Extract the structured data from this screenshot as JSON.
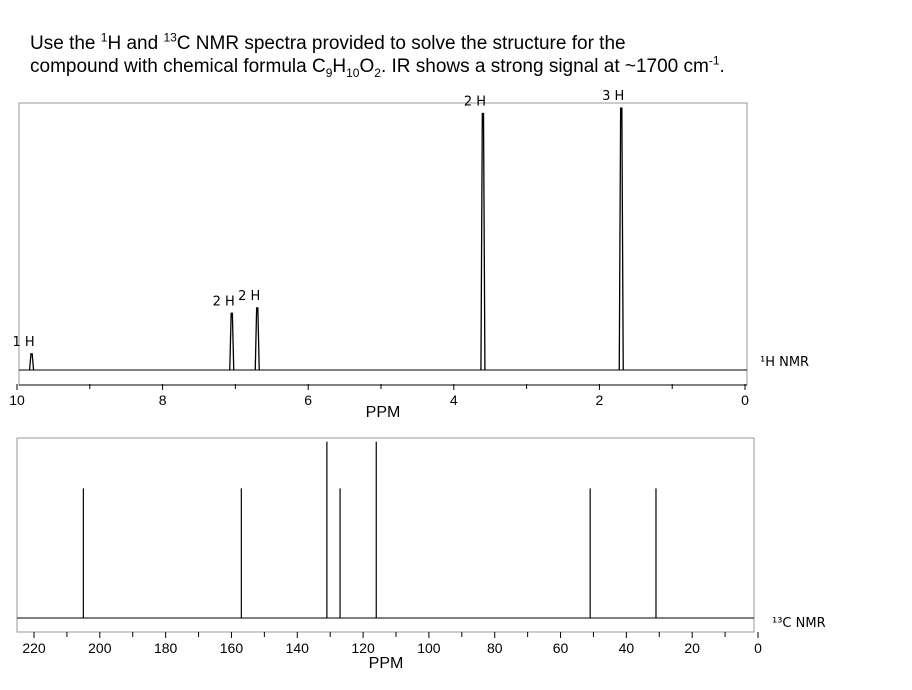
{
  "question": {
    "line1": {
      "a": "Use the ",
      "sup1": "1",
      "b": "H and ",
      "sup2": "13",
      "c": "C NMR spectra provided to solve the structure for the"
    },
    "line2": {
      "a": "compound with chemical formula C",
      "sub1": "9",
      "b": "H",
      "sub2": "10",
      "c": "O",
      "sub3": "2",
      "d": ". IR shows a strong signal at ~1700 cm",
      "sup1": "-1",
      "e": "."
    }
  },
  "chart_data": [
    {
      "type": "nmr",
      "label": "¹H NMR",
      "xlabel": "PPM",
      "xlim": [
        10,
        0
      ],
      "xticks": [
        10,
        8,
        6,
        4,
        2,
        0
      ],
      "peaks": [
        {
          "ppm": 9.8,
          "height": 0.06,
          "integration": "1 H"
        },
        {
          "ppm": 7.05,
          "height": 0.21,
          "integration": "2 H"
        },
        {
          "ppm": 6.7,
          "height": 0.23,
          "integration": "2 H"
        },
        {
          "ppm": 3.6,
          "height": 0.95,
          "integration": "2 H"
        },
        {
          "ppm": 1.7,
          "height": 0.97,
          "integration": "3 H"
        }
      ]
    },
    {
      "type": "nmr",
      "label": "¹³C NMR",
      "xlabel": "PPM",
      "xlim": [
        220,
        0
      ],
      "xticks": [
        220,
        200,
        180,
        160,
        140,
        120,
        100,
        80,
        60,
        40,
        20,
        0
      ],
      "peaks": [
        {
          "ppm": 205,
          "height": 0.72
        },
        {
          "ppm": 157,
          "height": 0.72
        },
        {
          "ppm": 131,
          "height": 0.98
        },
        {
          "ppm": 127,
          "height": 0.72
        },
        {
          "ppm": 116,
          "height": 0.98
        },
        {
          "ppm": 51,
          "height": 0.72
        },
        {
          "ppm": 31,
          "height": 0.72
        }
      ]
    }
  ]
}
